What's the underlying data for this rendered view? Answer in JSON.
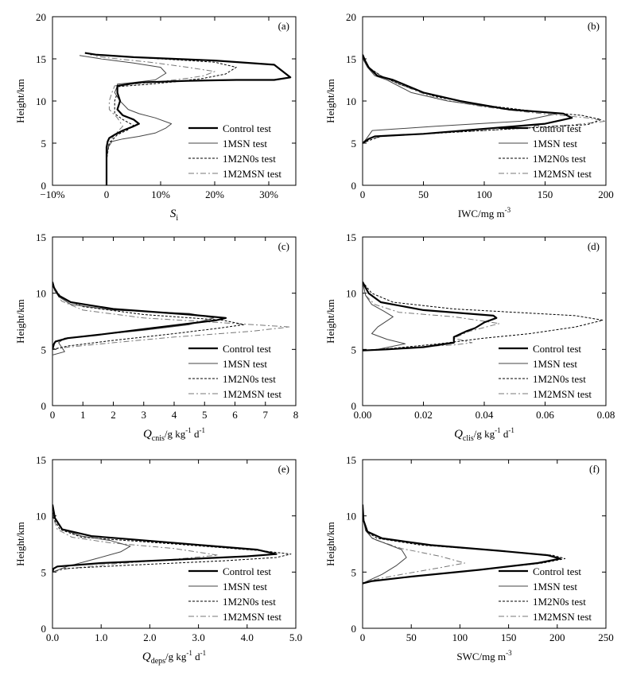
{
  "chart_data": [
    {
      "type": "line",
      "panel_label": "(a)",
      "xlabel": {
        "main": "S",
        "sub": "i",
        "unit": ""
      },
      "ylabel": "Height/km",
      "xlim": [
        -10,
        35
      ],
      "ylim": [
        0,
        20
      ],
      "xticks": [
        -10,
        0,
        10,
        20,
        30
      ],
      "xtick_labels": [
        "−10%",
        "0",
        "10%",
        "20%",
        "30%"
      ],
      "yticks": [
        0,
        5,
        10,
        15,
        20
      ],
      "grid": false,
      "legend_position": "lower-right",
      "series": [
        {
          "name": "Control test",
          "style": "thick-solid",
          "x": [
            0,
            0,
            0,
            0,
            0,
            0.2,
            0.5,
            1.5,
            3,
            5,
            6,
            5,
            3,
            2,
            2.5,
            2,
            2,
            6,
            15,
            24,
            31,
            34,
            31,
            20,
            5,
            -2,
            -4
          ],
          "y": [
            0,
            0.5,
            1.5,
            3,
            4.5,
            5.2,
            5.6,
            6,
            6.5,
            7,
            7.3,
            7.8,
            8.3,
            9,
            10,
            11,
            11.8,
            12.2,
            12.4,
            12.5,
            12.5,
            12.8,
            14.3,
            14.8,
            15.2,
            15.5,
            15.7
          ]
        },
        {
          "name": "1MSN test",
          "style": "thin-solid",
          "x": [
            0,
            0,
            0,
            0,
            0.3,
            1,
            3,
            6,
            9,
            11,
            12,
            9,
            6,
            4,
            2.5,
            1.5,
            2,
            2,
            5,
            9,
            11,
            10,
            5,
            -1,
            -5
          ],
          "y": [
            0,
            0.5,
            1.5,
            3,
            4.5,
            5.2,
            5.5,
            5.8,
            6.2,
            6.8,
            7.3,
            8,
            8.5,
            9,
            10,
            11,
            11.8,
            12,
            12.2,
            12.5,
            13.3,
            14,
            14.5,
            15,
            15.4
          ]
        },
        {
          "name": "1M2N0s test",
          "style": "dashed",
          "x": [
            0,
            0,
            0,
            0,
            0.5,
            2,
            4,
            5,
            3,
            1.5,
            1.5,
            2,
            2,
            8,
            13,
            18,
            22,
            24,
            20,
            10,
            2,
            -3
          ],
          "y": [
            0,
            0.5,
            1.5,
            3,
            5,
            6,
            6.6,
            7.1,
            7.8,
            8.5,
            10,
            11,
            11.7,
            12,
            12.3,
            12.7,
            13.2,
            14,
            14.6,
            15,
            15.3,
            15.5
          ]
        },
        {
          "name": "1M2MSN test",
          "style": "dash-dot",
          "x": [
            0,
            0,
            0,
            0,
            0.4,
            1.5,
            3,
            2,
            0.5,
            0.5,
            1,
            1.5,
            5,
            10,
            15,
            18,
            20,
            15,
            8,
            2,
            -2
          ],
          "y": [
            0,
            0.5,
            1.5,
            3,
            5,
            6,
            7,
            8,
            9,
            10,
            11,
            11.8,
            12,
            12.3,
            12.7,
            13,
            13.5,
            14,
            14.6,
            15,
            15.3
          ]
        }
      ]
    },
    {
      "type": "line",
      "panel_label": "(b)",
      "xlabel": {
        "main": "IWC/mg m",
        "sup": "-3"
      },
      "ylabel": "Height/km",
      "xlim": [
        0,
        200
      ],
      "ylim": [
        0,
        20
      ],
      "xticks": [
        0,
        50,
        100,
        150,
        200
      ],
      "xtick_labels": [
        "0",
        "50",
        "100",
        "150",
        "200"
      ],
      "yticks": [
        0,
        5,
        10,
        15,
        20
      ],
      "grid": false,
      "legend_position": "lower-right",
      "series": [
        {
          "name": "Control test",
          "style": "thick-solid",
          "x": [
            0,
            5,
            10,
            50,
            150,
            172,
            165,
            120,
            80,
            50,
            25,
            12,
            5,
            2,
            0
          ],
          "y": [
            5,
            5.5,
            5.8,
            6.1,
            7.3,
            8,
            8.5,
            9,
            10,
            11,
            12.5,
            13,
            14,
            14.8,
            15.5
          ]
        },
        {
          "name": "1MSN test",
          "style": "thin-solid",
          "x": [
            0,
            3,
            8,
            60,
            130,
            160,
            140,
            110,
            70,
            40,
            20,
            10,
            4,
            1,
            0
          ],
          "y": [
            5,
            5.5,
            6.5,
            7,
            7.6,
            8.5,
            8.8,
            9.2,
            10,
            11,
            12.5,
            13,
            14,
            14.8,
            15.5
          ]
        },
        {
          "name": "1M2N0s test",
          "style": "dashed",
          "x": [
            0,
            5,
            15,
            100,
            185,
            196,
            180,
            140,
            100,
            60,
            30,
            15,
            5,
            1,
            0
          ],
          "y": [
            5,
            5.3,
            5.8,
            6.5,
            7.2,
            7.8,
            8.3,
            8.8,
            9.5,
            10.5,
            12,
            13,
            14,
            14.8,
            15.5
          ]
        },
        {
          "name": "1M2MSN test",
          "style": "dash-dot",
          "x": [
            0,
            5,
            15,
            100,
            175,
            200,
            185,
            140,
            100,
            60,
            30,
            15,
            5,
            1,
            0
          ],
          "y": [
            5,
            5.3,
            5.8,
            6.5,
            7.2,
            7.6,
            8,
            8.6,
            9.3,
            10.3,
            12,
            13,
            14,
            14.8,
            15.5
          ]
        }
      ]
    },
    {
      "type": "line",
      "panel_label": "(c)",
      "xlabel": {
        "main": "Q",
        "sub": "cnis",
        "unit": "/g kg",
        "sup1": "-1",
        "unit2": " d",
        "sup2": "-1"
      },
      "ylabel": "Height/km",
      "xlim": [
        0,
        8
      ],
      "ylim": [
        0,
        15
      ],
      "xticks": [
        0,
        1,
        2,
        3,
        4,
        5,
        6,
        7,
        8
      ],
      "xtick_labels": [
        "0",
        "1",
        "2",
        "3",
        "4",
        "5",
        "6",
        "7",
        "8"
      ],
      "yticks": [
        0,
        5,
        10,
        15
      ],
      "grid": false,
      "legend_position": "lower-right",
      "series": [
        {
          "name": "Control test",
          "style": "thick-solid",
          "x": [
            0,
            0.05,
            0.1,
            0.5,
            1.5,
            3,
            4.5,
            5.4,
            5.7,
            4.5,
            2,
            0.6,
            0.2,
            0.05,
            0
          ],
          "y": [
            5,
            5.5,
            5.7,
            6,
            6.3,
            6.8,
            7.3,
            7.6,
            7.8,
            8.1,
            8.6,
            9.2,
            9.8,
            10.5,
            11
          ]
        },
        {
          "name": "1MSN test",
          "style": "thin-solid",
          "x": [
            0,
            0.4,
            0.2,
            0.4,
            1.5,
            3,
            4.5,
            5.3,
            4.5,
            2,
            0.6,
            0.2,
            0.05,
            0
          ],
          "y": [
            4.5,
            4.8,
            5.6,
            6,
            6.3,
            6.7,
            7.2,
            7.8,
            8.2,
            8.5,
            9,
            9.7,
            10.5,
            11
          ]
        },
        {
          "name": "1M2N0s test",
          "style": "dashed",
          "x": [
            0,
            0.5,
            2,
            4,
            5.5,
            6.3,
            5.6,
            3,
            1,
            0.3,
            0.05,
            0
          ],
          "y": [
            5,
            5.3,
            5.8,
            6.4,
            6.9,
            7.2,
            7.6,
            8.1,
            8.8,
            9.6,
            10.5,
            11
          ]
        },
        {
          "name": "1M2MSN test",
          "style": "dash-dot",
          "x": [
            0,
            0.5,
            2,
            4,
            6.5,
            7.8,
            6,
            3,
            1,
            0.3,
            0.05,
            0
          ],
          "y": [
            5,
            5.2,
            5.6,
            6.1,
            6.6,
            7.0,
            7.3,
            7.8,
            8.5,
            9.3,
            10.3,
            11
          ]
        }
      ]
    },
    {
      "type": "line",
      "panel_label": "(d)",
      "xlabel": {
        "main": "Q",
        "sub": "clis",
        "unit": "/g kg",
        "sup1": "-1",
        "unit2": " d",
        "sup2": "-1"
      },
      "ylabel": "Height/km",
      "xlim": [
        0,
        0.08
      ],
      "ylim": [
        0,
        15
      ],
      "xticks": [
        0,
        0.02,
        0.04,
        0.06,
        0.08
      ],
      "xtick_labels": [
        "0.00",
        "0.02",
        "0.04",
        "0.06",
        "0.08"
      ],
      "yticks": [
        0,
        5,
        10,
        15
      ],
      "grid": false,
      "legend_position": "lower-right",
      "series": [
        {
          "name": "Control test",
          "style": "thick-solid",
          "x": [
            0,
            0.008,
            0.02,
            0.03,
            0.03,
            0.034,
            0.037,
            0.04,
            0.044,
            0.043,
            0.02,
            0.006,
            0.002,
            0
          ],
          "y": [
            4.9,
            5.0,
            5.2,
            5.6,
            6.1,
            6.6,
            6.9,
            7.4,
            7.8,
            8.0,
            8.5,
            9.2,
            10,
            11
          ]
        },
        {
          "name": "1MSN test",
          "style": "thin-solid",
          "x": [
            0,
            0.005,
            0.014,
            0.008,
            0.003,
            0.005,
            0.01,
            0.007,
            0.003,
            0.001,
            0
          ],
          "y": [
            4.9,
            5.0,
            5.5,
            5.9,
            6.4,
            7.0,
            7.9,
            8.4,
            9.0,
            9.8,
            11
          ]
        },
        {
          "name": "1M2N0s test",
          "style": "dashed",
          "x": [
            0,
            0.01,
            0.025,
            0.04,
            0.055,
            0.07,
            0.079,
            0.07,
            0.05,
            0.03,
            0.01,
            0.003,
            0
          ],
          "y": [
            4.9,
            5.1,
            5.5,
            6.0,
            6.4,
            7.0,
            7.6,
            8.0,
            8.3,
            8.6,
            9.2,
            10,
            11
          ]
        },
        {
          "name": "1M2MSN test",
          "style": "dash-dot",
          "x": [
            0,
            0.01,
            0.03,
            0.036,
            0.03,
            0.035,
            0.045,
            0.03,
            0.012,
            0.004,
            0.001,
            0
          ],
          "y": [
            4.9,
            5.1,
            5.4,
            5.6,
            6.0,
            6.6,
            7.3,
            7.9,
            8.3,
            9.0,
            9.8,
            11
          ]
        }
      ]
    },
    {
      "type": "line",
      "panel_label": "(e)",
      "xlabel": {
        "main": "Q",
        "sub": "deps",
        "unit": "/g kg",
        "sup1": "-1",
        "unit2": " d",
        "sup2": "-1"
      },
      "ylabel": "Height/km",
      "xlim": [
        0,
        5
      ],
      "ylim": [
        0,
        15
      ],
      "xticks": [
        0,
        1,
        2,
        3,
        4,
        5
      ],
      "xtick_labels": [
        "0.0",
        "1.0",
        "2.0",
        "3.0",
        "4.0",
        "5.0"
      ],
      "yticks": [
        0,
        5,
        10,
        15
      ],
      "grid": false,
      "legend_position": "lower-right",
      "series": [
        {
          "name": "Control test",
          "style": "thick-solid",
          "x": [
            0,
            0.02,
            0.1,
            1,
            2.5,
            4,
            4.6,
            4.2,
            2.5,
            0.8,
            0.2,
            0.05,
            0
          ],
          "y": [
            5,
            5.3,
            5.5,
            5.8,
            6.1,
            6.4,
            6.6,
            7.0,
            7.6,
            8.2,
            8.8,
            9.8,
            11
          ]
        },
        {
          "name": "1MSN test",
          "style": "thin-solid",
          "x": [
            0,
            0.3,
            0.9,
            1.4,
            1.6,
            1.2,
            0.6,
            0.2,
            0.05,
            0
          ],
          "y": [
            5,
            5.5,
            6.2,
            6.8,
            7.3,
            7.8,
            8.2,
            8.8,
            9.8,
            11
          ]
        },
        {
          "name": "1M2N0s test",
          "style": "dashed",
          "x": [
            0,
            0.2,
            1.5,
            3.5,
            4.6,
            4.9,
            4.3,
            2.5,
            0.6,
            0.15,
            0.02,
            0
          ],
          "y": [
            5,
            5.3,
            5.6,
            6.0,
            6.3,
            6.6,
            6.9,
            7.5,
            8.1,
            8.8,
            9.8,
            11
          ]
        },
        {
          "name": "1M2MSN test",
          "style": "dash-dot",
          "x": [
            0,
            0.3,
            1.2,
            2.4,
            3.4,
            2.5,
            1.2,
            0.4,
            0.1,
            0.02,
            0
          ],
          "y": [
            5,
            5.3,
            5.7,
            6.1,
            6.5,
            7.1,
            7.6,
            8.1,
            8.8,
            9.8,
            11
          ]
        }
      ]
    },
    {
      "type": "line",
      "panel_label": "(f)",
      "xlabel": {
        "main": "SWC/mg m",
        "sup": "-3"
      },
      "ylabel": "Height/km",
      "xlim": [
        0,
        250
      ],
      "ylim": [
        0,
        15
      ],
      "xticks": [
        0,
        50,
        100,
        150,
        200,
        250
      ],
      "xtick_labels": [
        "0",
        "50",
        "100",
        "150",
        "200",
        "250"
      ],
      "yticks": [
        0,
        5,
        10,
        15
      ],
      "grid": false,
      "legend_position": "lower-right",
      "series": [
        {
          "name": "Control test",
          "style": "thick-solid",
          "x": [
            0,
            10,
            50,
            120,
            180,
            203,
            190,
            140,
            70,
            20,
            5,
            1,
            0
          ],
          "y": [
            4,
            4.2,
            4.6,
            5.2,
            5.8,
            6.2,
            6.5,
            6.9,
            7.4,
            8.0,
            8.6,
            9.6,
            11
          ]
        },
        {
          "name": "1MSN test",
          "style": "thin-solid",
          "x": [
            0,
            5,
            20,
            35,
            45,
            40,
            25,
            10,
            3,
            1,
            0
          ],
          "y": [
            4,
            4.2,
            4.8,
            5.6,
            6.3,
            7.0,
            7.5,
            8.0,
            8.7,
            9.6,
            11
          ]
        },
        {
          "name": "1M2N0s test",
          "style": "dashed",
          "x": [
            0,
            10,
            50,
            120,
            185,
            208,
            195,
            140,
            60,
            15,
            4,
            1,
            0
          ],
          "y": [
            4,
            4.2,
            4.6,
            5.2,
            5.8,
            6.2,
            6.5,
            6.9,
            7.4,
            8.0,
            8.6,
            9.6,
            11
          ]
        },
        {
          "name": "1M2MSN test",
          "style": "dash-dot",
          "x": [
            0,
            10,
            40,
            80,
            105,
            80,
            40,
            12,
            3,
            1,
            0
          ],
          "y": [
            4,
            4.3,
            4.8,
            5.4,
            5.8,
            6.4,
            7.1,
            7.9,
            8.7,
            9.6,
            11
          ]
        }
      ]
    }
  ]
}
